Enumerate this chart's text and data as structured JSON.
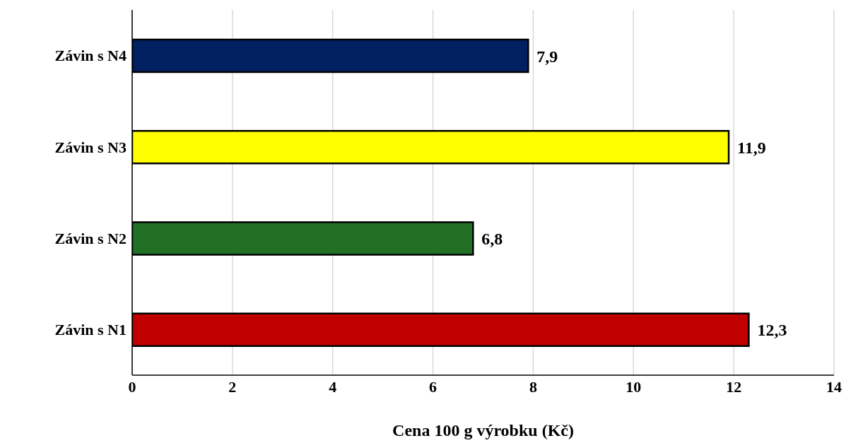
{
  "chart_data": {
    "type": "bar",
    "orientation": "horizontal",
    "xlabel": "Cena 100 g výrobku (Kč)",
    "categories": [
      "Závin s N4",
      "Závin s N3",
      "Závin s N2",
      "Závin s N1"
    ],
    "values": [
      7.9,
      11.9,
      6.8,
      12.3
    ],
    "value_labels": [
      "7,9",
      "11,9",
      "6,8",
      "12,3"
    ],
    "colors": [
      "#002060",
      "#ffff00",
      "#217025",
      "#c00000"
    ],
    "xlim": [
      0,
      14
    ],
    "xticks": [
      0,
      2,
      4,
      6,
      8,
      10,
      12,
      14
    ],
    "grid": "x"
  }
}
